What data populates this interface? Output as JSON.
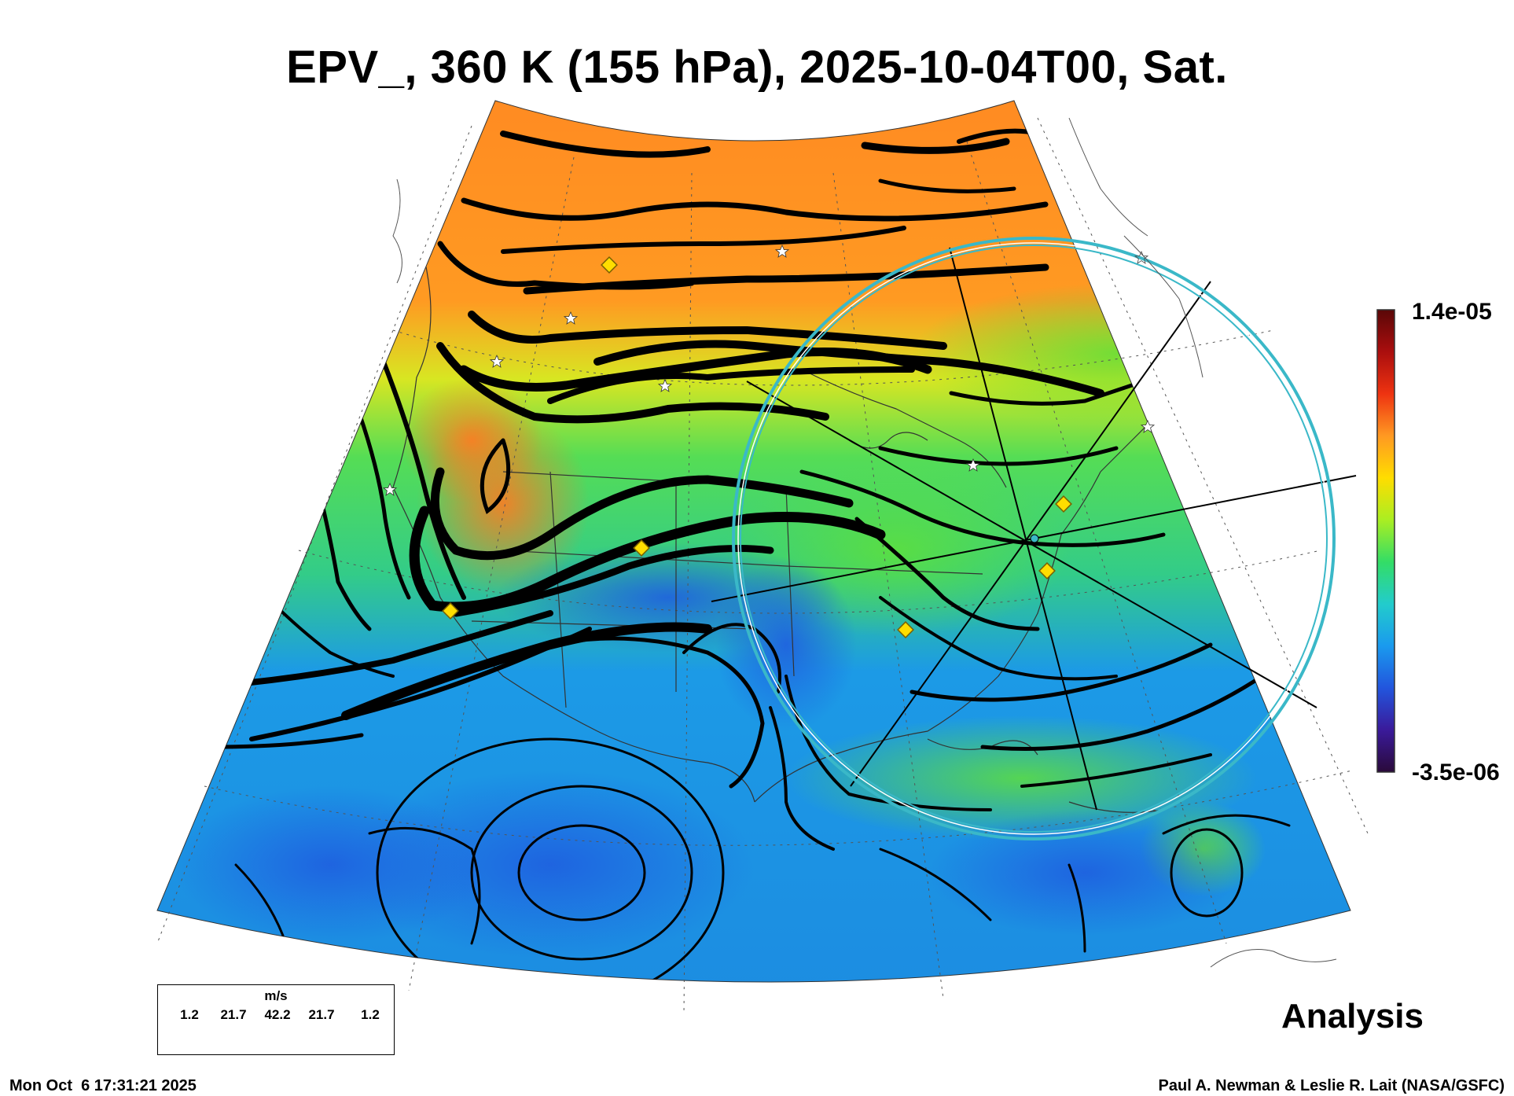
{
  "title": "EPV_, 360 K (155 hPa), 2025-10-04T00, Sat.",
  "colorbar": {
    "max_label": "1.4e-05",
    "min_label": "-3.5e-06",
    "stops": [
      "#2a0a3a",
      "#3a1a9a",
      "#2255dd",
      "#1a9aee",
      "#22cccc",
      "#33dd66",
      "#aaee22",
      "#ffdd00",
      "#ff9922",
      "#ee3311",
      "#aa0e0e",
      "#5a0707"
    ]
  },
  "label_analysis": "Analysis",
  "timestamp": "Mon Oct  6 17:31:21 2025",
  "credit": "Paul A. Newman & Leslie R. Lait (NASA/GSFC)",
  "wind_legend": {
    "unit": "m/s",
    "values": [
      "1.2",
      "21.7",
      "42.2",
      "21.7",
      "1.2"
    ]
  },
  "colors": {
    "streamline": "#000000",
    "circle": "#3ab8c8",
    "marker_diamond": "#ffdd00",
    "marker_star": "#ffffff"
  }
}
